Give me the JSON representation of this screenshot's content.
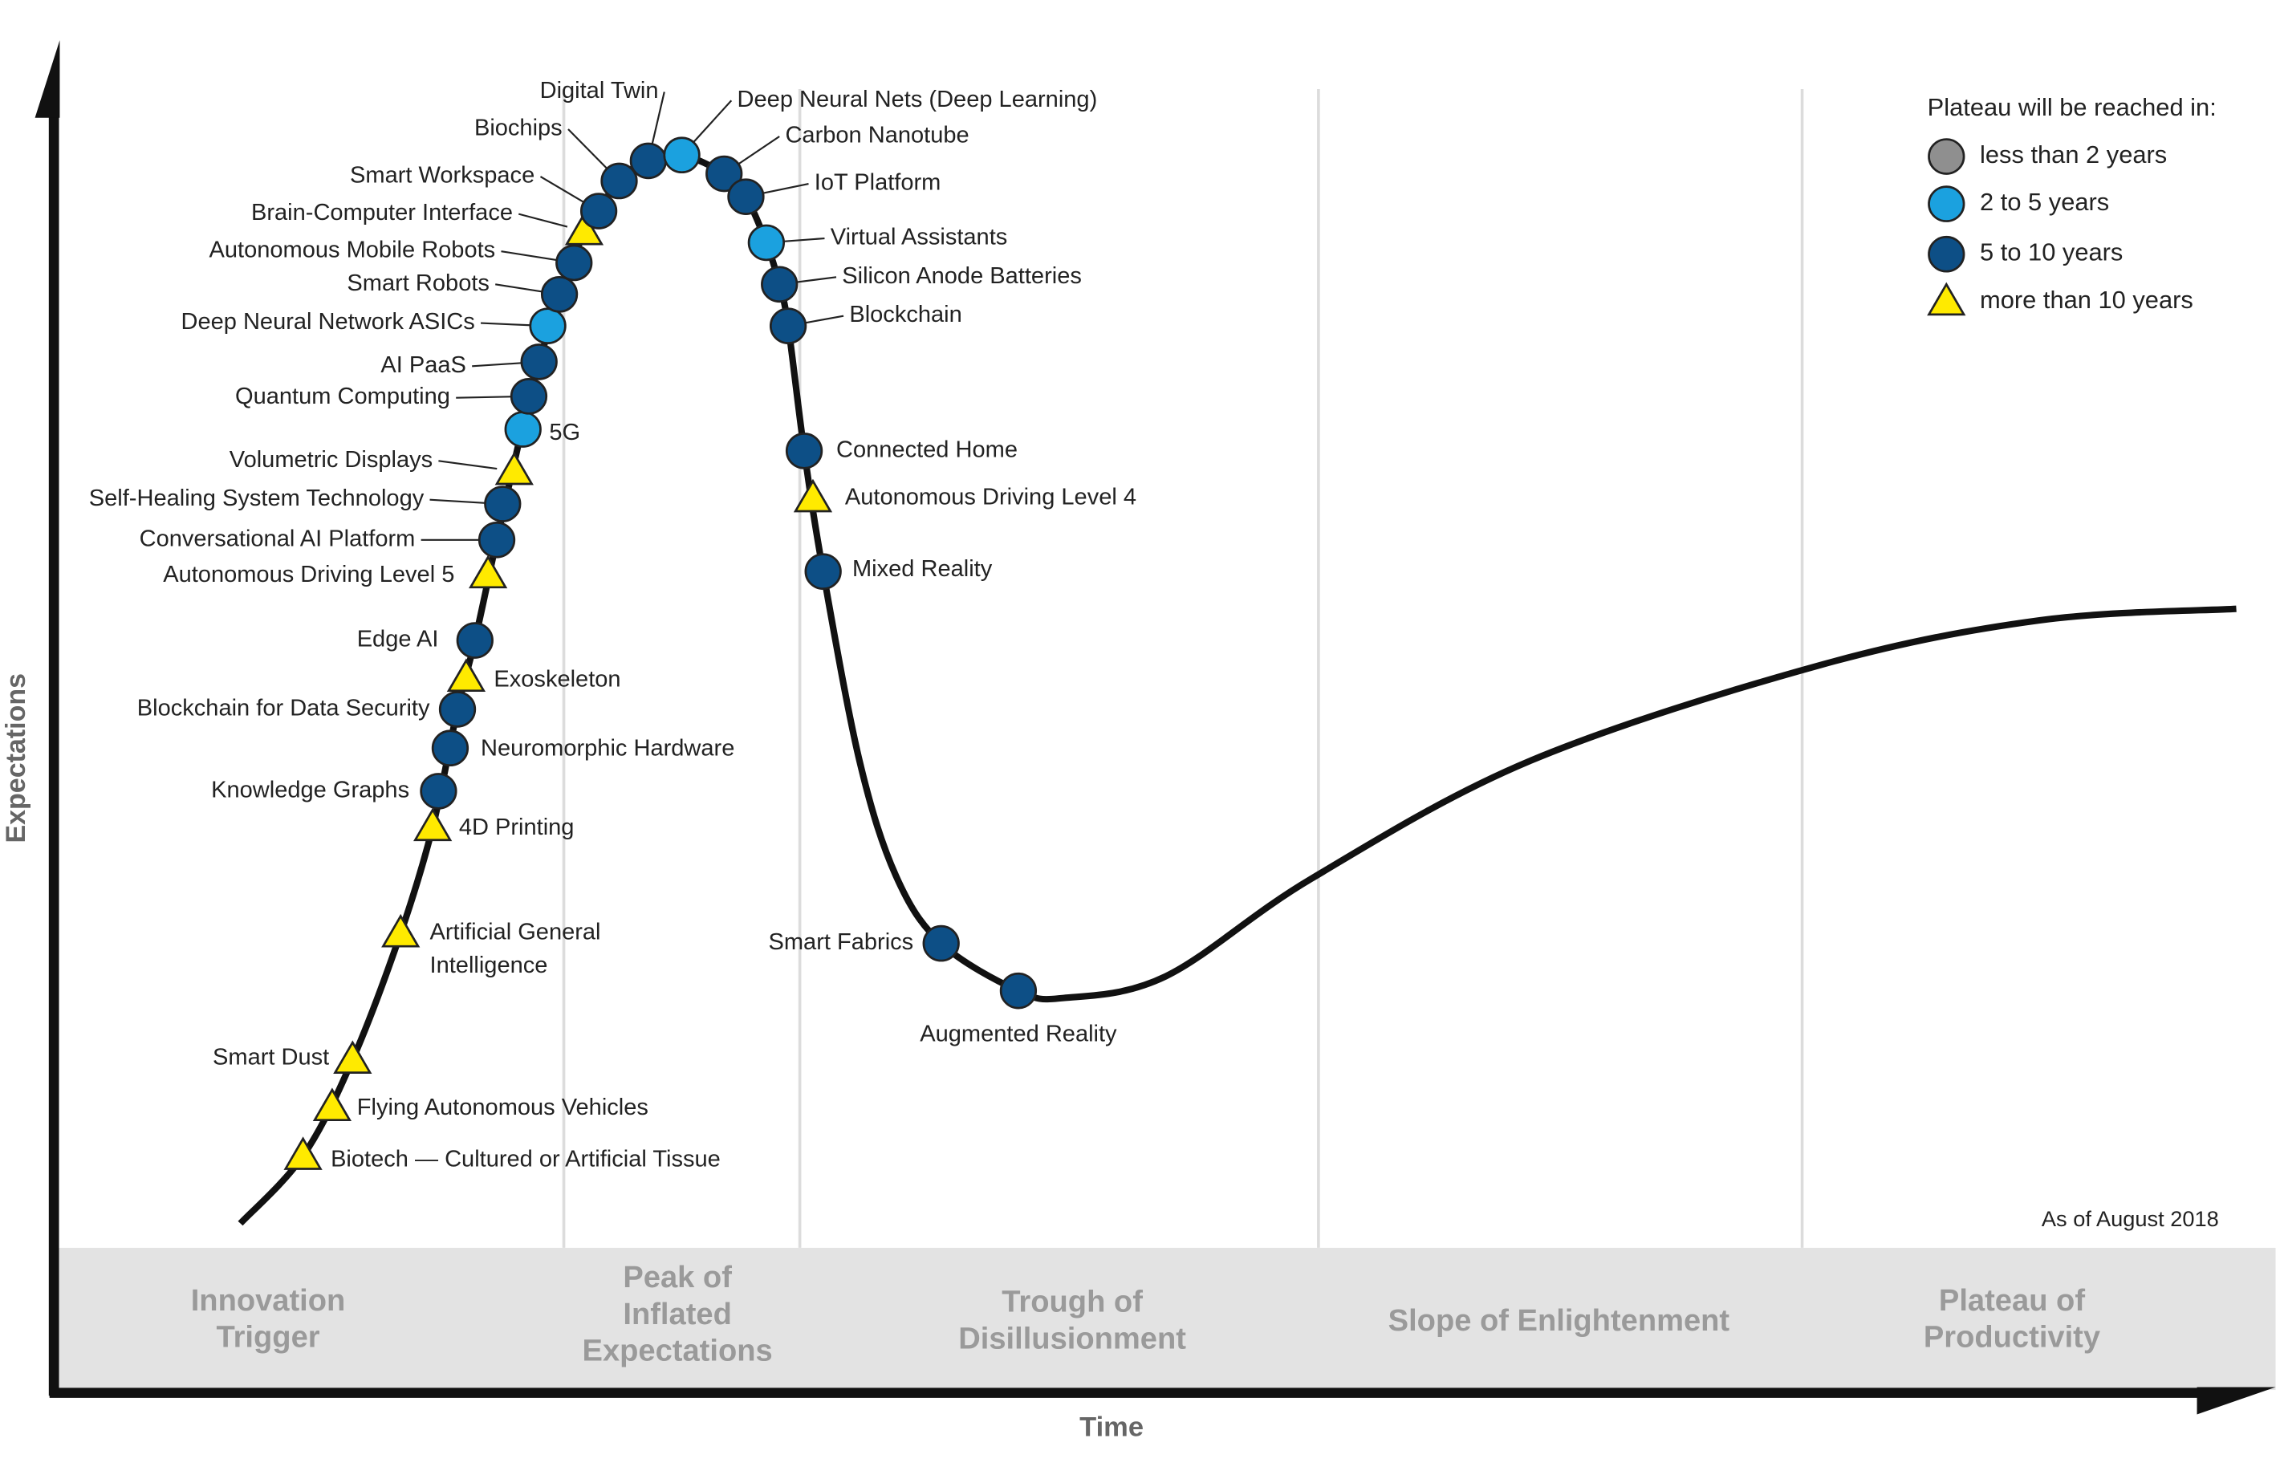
{
  "axes": {
    "y_label": "Expectations",
    "x_label": "Time"
  },
  "note": "As of August 2018",
  "legend": {
    "title": "Plateau will be reached in:",
    "items": [
      {
        "label": "less than 2 years",
        "shape": "circle",
        "color": "#8f8f8f"
      },
      {
        "label": "2 to 5 years",
        "shape": "circle",
        "color": "#1ba1df"
      },
      {
        "label": "5 to 10 years",
        "shape": "circle",
        "color": "#0d4f86"
      },
      {
        "label": "more than 10 years",
        "shape": "triangle",
        "color": "#ffea00"
      }
    ]
  },
  "phases": [
    {
      "lines": [
        "Innovation",
        "Trigger"
      ]
    },
    {
      "lines": [
        "Peak of",
        "Inflated",
        "Expectations"
      ]
    },
    {
      "lines": [
        "Trough of",
        "Disillusionment"
      ]
    },
    {
      "lines": [
        "Slope of Enlightenment"
      ]
    },
    {
      "lines": [
        "Plateau of",
        "Productivity"
      ]
    }
  ],
  "technologies": [
    {
      "lines": [
        "Biotech — Cultured or Artificial Tissue"
      ],
      "shape": "triangle",
      "color": "#ffea00"
    },
    {
      "lines": [
        "Flying Autonomous Vehicles"
      ],
      "shape": "triangle",
      "color": "#ffea00"
    },
    {
      "lines": [
        "Smart Dust"
      ],
      "shape": "triangle",
      "color": "#ffea00"
    },
    {
      "lines": [
        "Artificial General",
        "Intelligence"
      ],
      "shape": "triangle",
      "color": "#ffea00"
    },
    {
      "lines": [
        "4D Printing"
      ],
      "shape": "triangle",
      "color": "#ffea00"
    },
    {
      "lines": [
        "Knowledge Graphs"
      ],
      "shape": "circle",
      "color": "#0d4f86"
    },
    {
      "lines": [
        "Neuromorphic Hardware"
      ],
      "shape": "circle",
      "color": "#0d4f86"
    },
    {
      "lines": [
        "Blockchain for Data Security"
      ],
      "shape": "circle",
      "color": "#0d4f86"
    },
    {
      "lines": [
        "Exoskeleton"
      ],
      "shape": "triangle",
      "color": "#ffea00"
    },
    {
      "lines": [
        "Edge AI"
      ],
      "shape": "circle",
      "color": "#0d4f86"
    },
    {
      "lines": [
        "Autonomous Driving Level 5"
      ],
      "shape": "triangle",
      "color": "#ffea00"
    },
    {
      "lines": [
        "Conversational AI Platform"
      ],
      "shape": "circle",
      "color": "#0d4f86"
    },
    {
      "lines": [
        "Self-Healing System Technology"
      ],
      "shape": "circle",
      "color": "#0d4f86"
    },
    {
      "lines": [
        "Volumetric Displays"
      ],
      "shape": "triangle",
      "color": "#ffea00"
    },
    {
      "lines": [
        "5G"
      ],
      "shape": "circle",
      "color": "#1ba1df"
    },
    {
      "lines": [
        "Quantum Computing"
      ],
      "shape": "circle",
      "color": "#0d4f86"
    },
    {
      "lines": [
        "AI PaaS"
      ],
      "shape": "circle",
      "color": "#0d4f86"
    },
    {
      "lines": [
        "Deep Neural Network ASICs"
      ],
      "shape": "circle",
      "color": "#1ba1df"
    },
    {
      "lines": [
        "Smart Robots"
      ],
      "shape": "circle",
      "color": "#0d4f86"
    },
    {
      "lines": [
        "Autonomous Mobile Robots"
      ],
      "shape": "circle",
      "color": "#0d4f86"
    },
    {
      "lines": [
        "Brain-Computer Interface"
      ],
      "shape": "triangle",
      "color": "#ffea00"
    },
    {
      "lines": [
        "Smart Workspace"
      ],
      "shape": "circle",
      "color": "#0d4f86"
    },
    {
      "lines": [
        "Biochips"
      ],
      "shape": "circle",
      "color": "#0d4f86"
    },
    {
      "lines": [
        "Digital Twin"
      ],
      "shape": "circle",
      "color": "#0d4f86"
    },
    {
      "lines": [
        "Deep Neural Nets (Deep Learning)"
      ],
      "shape": "circle",
      "color": "#1ba1df"
    },
    {
      "lines": [
        "Carbon Nanotube"
      ],
      "shape": "circle",
      "color": "#0d4f86"
    },
    {
      "lines": [
        "IoT Platform"
      ],
      "shape": "circle",
      "color": "#0d4f86"
    },
    {
      "lines": [
        "Virtual Assistants"
      ],
      "shape": "circle",
      "color": "#1ba1df"
    },
    {
      "lines": [
        "Silicon Anode Batteries"
      ],
      "shape": "circle",
      "color": "#0d4f86"
    },
    {
      "lines": [
        "Blockchain"
      ],
      "shape": "circle",
      "color": "#0d4f86"
    },
    {
      "lines": [
        "Connected Home"
      ],
      "shape": "circle",
      "color": "#0d4f86"
    },
    {
      "lines": [
        "Autonomous Driving Level 4"
      ],
      "shape": "triangle",
      "color": "#ffea00"
    },
    {
      "lines": [
        "Mixed Reality"
      ],
      "shape": "circle",
      "color": "#0d4f86"
    },
    {
      "lines": [
        "Smart Fabrics"
      ],
      "shape": "circle",
      "color": "#0d4f86"
    },
    {
      "lines": [
        "Augmented Reality"
      ],
      "shape": "circle",
      "color": "#0d4f86"
    }
  ]
}
